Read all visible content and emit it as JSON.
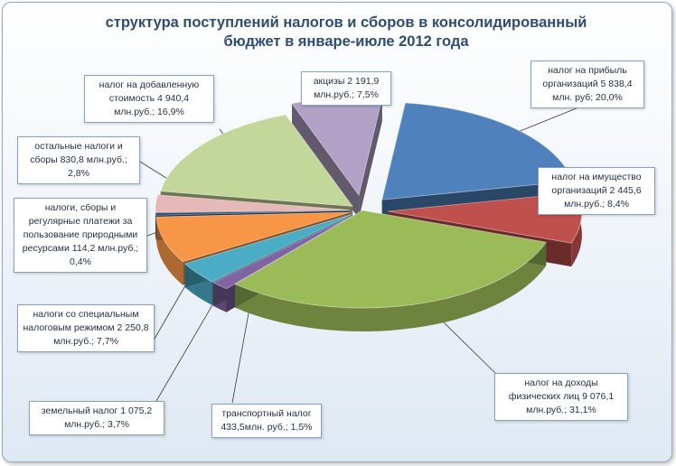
{
  "title": {
    "line1": "структура поступлений налогов и сборов в консолидированный",
    "line2": "бюджет в  январе-июле  2012 года"
  },
  "chart_data": {
    "type": "pie",
    "style": "3d-exploded",
    "title": "структура поступлений налогов и сборов в консолидированный бюджет в январе-июле 2012 года",
    "unit": "млн.руб.",
    "slices": [
      {
        "name": "налог на прибыль организаций",
        "value": 5838.4,
        "percent": 20.0,
        "color": "#4f81bd",
        "label": "налог на прибыль организаций 5 838,4 млн. руб; 20,0%"
      },
      {
        "name": "налог на имущество организаций",
        "value": 2445.6,
        "percent": 8.4,
        "color": "#c0504d",
        "label": "налог на имущество организаций 2 445,6 млн.руб.; 8,4%"
      },
      {
        "name": "налог на доходы физических лиц",
        "value": 9076.1,
        "percent": 31.1,
        "color": "#9bbb59",
        "label": "налог на доходы физических лиц 9 076,1 млн.руб.; 31,1%"
      },
      {
        "name": "транспортный налог",
        "value": 433.5,
        "percent": 1.5,
        "color": "#8064a2",
        "label": "транспортный налог 433,5млн. руб.; 1,5%"
      },
      {
        "name": "земельный налог",
        "value": 1075.2,
        "percent": 3.7,
        "color": "#4bacc6",
        "label": "земельный налог 1 075,2 млн.руб.; 3,7%"
      },
      {
        "name": "налоги со специальным налоговым режимом",
        "value": 2250.8,
        "percent": 7.7,
        "color": "#f79646",
        "label": "налоги со специальным налоговым режимом 2 250,8 млн.руб.; 7,7%"
      },
      {
        "name": "налоги, сборы и регулярные платежи за пользование природными ресурсами",
        "value": 114.2,
        "percent": 0.4,
        "color": "#2c4d75",
        "label": "налоги, сборы и регулярные платежи за пользование природными ресурсами 114,2 млн.руб.; 0,4%"
      },
      {
        "name": "остальные налоги и сборы",
        "value": 830.8,
        "percent": 2.8,
        "color": "#e6b9b8",
        "label": "остальные налоги и сборы 830,8 млн.руб.; 2,8%"
      },
      {
        "name": "налог на добавленную стоимость",
        "value": 4940.4,
        "percent": 16.9,
        "color": "#c4d79b",
        "label": "налог на добавленную стоимость 4 940,4 млн.руб.; 16,9%"
      },
      {
        "name": "акцизы",
        "value": 2191.9,
        "percent": 7.5,
        "color": "#b2a1c7",
        "label": "акцизы 2 191,9 млн.руб.; 7,5%"
      }
    ]
  }
}
